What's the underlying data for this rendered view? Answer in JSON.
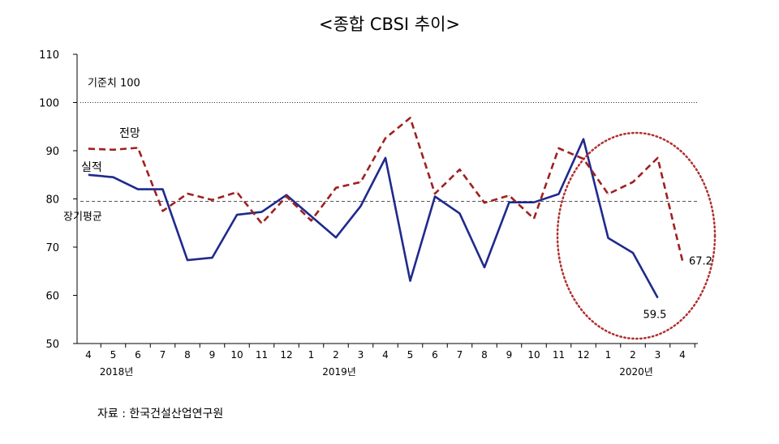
{
  "title": "<종합 CBSI 추이>",
  "source": "자료 : 한국건설산업연구원",
  "chart_data": {
    "type": "line",
    "title": "<종합 CBSI 추이>",
    "ylim": [
      50,
      110
    ],
    "yticks": [
      50,
      60,
      70,
      80,
      90,
      100,
      110
    ],
    "categories": [
      "4",
      "5",
      "6",
      "7",
      "8",
      "9",
      "10",
      "11",
      "12",
      "1",
      "2",
      "3",
      "4",
      "5",
      "6",
      "7",
      "8",
      "9",
      "10",
      "11",
      "12",
      "1",
      "2",
      "3",
      "4"
    ],
    "year_labels": [
      {
        "label": "2018년",
        "index": 1
      },
      {
        "label": "2019년",
        "index": 10
      },
      {
        "label": "2020년",
        "index": 22
      }
    ],
    "series": [
      {
        "name": "실적",
        "color": "#1f2a8c",
        "dash": "solid",
        "values": [
          85.0,
          84.5,
          82.0,
          82.0,
          67.3,
          67.8,
          76.7,
          77.3,
          80.8,
          76.4,
          72.0,
          78.5,
          88.5,
          63.0,
          80.5,
          77.0,
          65.8,
          79.3,
          79.3,
          81.0,
          92.4,
          71.9,
          68.8,
          59.5,
          null
        ]
      },
      {
        "name": "전망",
        "color": "#a02020",
        "dash": "dashed",
        "values": [
          90.4,
          90.2,
          90.6,
          77.5,
          81.1,
          79.8,
          81.4,
          74.9,
          80.5,
          75.5,
          82.3,
          83.5,
          92.6,
          96.8,
          81.1,
          86.1,
          79.2,
          80.7,
          75.9,
          90.5,
          88.3,
          81.0,
          83.5,
          88.5,
          67.2
        ]
      }
    ],
    "reference_lines": [
      {
        "label": "기준치 100",
        "value": 100,
        "style": "dotted"
      },
      {
        "label": "장기평균",
        "value": 79.5,
        "style": "dashed"
      }
    ],
    "annotations": [
      {
        "text": "59.5",
        "series": "실적",
        "index": 23
      },
      {
        "text": "67.2",
        "series": "전망",
        "index": 24
      }
    ],
    "highlight": {
      "shape": "ellipse",
      "color": "#b03030",
      "style": "dotted"
    },
    "legend": "inline labels",
    "grid": false
  }
}
